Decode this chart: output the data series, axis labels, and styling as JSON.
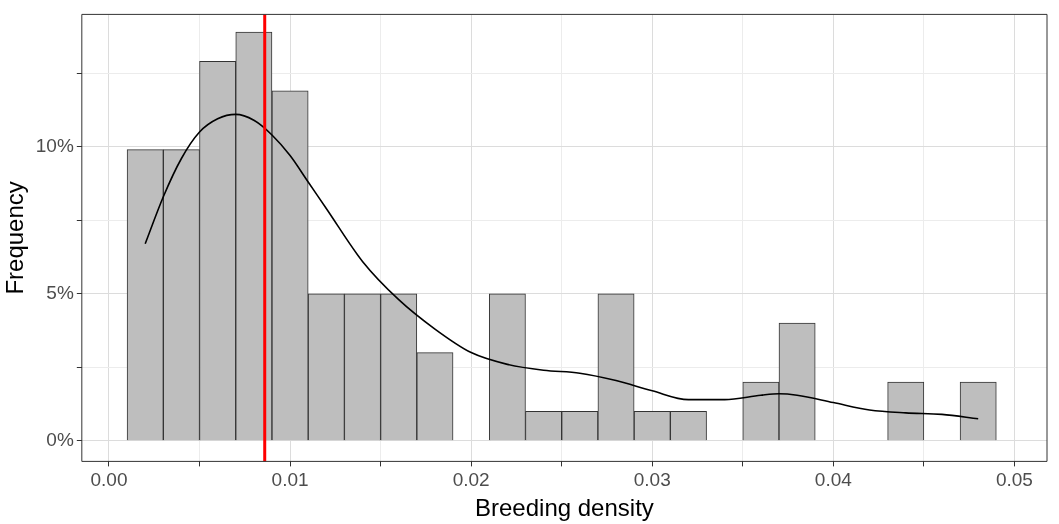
{
  "chart_data": {
    "type": "histogram",
    "xlabel": "Breeding density",
    "ylabel": "Frequency",
    "bins": [
      0.001,
      0.003,
      0.005,
      0.007,
      0.009,
      0.011,
      0.013,
      0.015,
      0.017,
      0.019,
      0.021,
      0.023,
      0.025,
      0.027,
      0.029,
      0.031,
      0.033,
      0.035,
      0.037,
      0.039,
      0.041,
      0.043,
      0.045,
      0.047,
      0.049
    ],
    "values": [
      9.9,
      9.9,
      12.9,
      13.9,
      11.9,
      5,
      5,
      5,
      3,
      0,
      5,
      1,
      1,
      5,
      1,
      1,
      0,
      2,
      4,
      0,
      0,
      2,
      0,
      2
    ],
    "color": "#bebebe",
    "series": [
      {
        "type": "line",
        "color": "#000000",
        "x": [
          0.002,
          0.003,
          0.004,
          0.005,
          0.006,
          0.007,
          0.008,
          0.009,
          0.01,
          0.011,
          0.012,
          0.014,
          0.016,
          0.018,
          0.02,
          0.022,
          0.024,
          0.026,
          0.028,
          0.03,
          0.032,
          0.034,
          0.036,
          0.037,
          0.038,
          0.04,
          0.042,
          0.044,
          0.046,
          0.048
        ],
        "values": [
          6.7,
          8.3,
          9.6,
          10.5,
          10.95,
          11.1,
          10.9,
          10.4,
          9.7,
          8.8,
          7.9,
          6.1,
          4.8,
          3.8,
          3.0,
          2.6,
          2.4,
          2.3,
          2.05,
          1.7,
          1.4,
          1.4,
          1.55,
          1.6,
          1.55,
          1.3,
          1.05,
          0.95,
          0.9,
          0.75
        ]
      }
    ],
    "ref_lines": [
      {
        "axis": "x",
        "value": 0.0086,
        "color": "#ff0000"
      }
    ],
    "xlim": [
      -0.0015,
      0.0518
    ],
    "xticks": [
      {
        "value": 0,
        "label": "0.00"
      },
      {
        "value": 0.005,
        "label": null
      },
      {
        "value": 0.01,
        "label": "0.01"
      },
      {
        "value": 0.015,
        "label": null
      },
      {
        "value": 0.02,
        "label": "0.02"
      },
      {
        "value": 0.025,
        "label": null
      },
      {
        "value": 0.03,
        "label": "0.03"
      },
      {
        "value": 0.035,
        "label": null
      },
      {
        "value": 0.04,
        "label": "0.04"
      },
      {
        "value": 0.045,
        "label": null
      },
      {
        "value": 0.05,
        "label": "0.05"
      }
    ],
    "ylim": [
      -0.7,
      14.5
    ],
    "yticks": [
      {
        "value": 0,
        "label": "0%"
      },
      {
        "value": 2.5,
        "label": null
      },
      {
        "value": 5,
        "label": "5%"
      },
      {
        "value": 7.5,
        "label": null
      },
      {
        "value": 10,
        "label": "10%"
      },
      {
        "value": 12.5,
        "label": null
      }
    ],
    "grid": true,
    "legend": false
  }
}
